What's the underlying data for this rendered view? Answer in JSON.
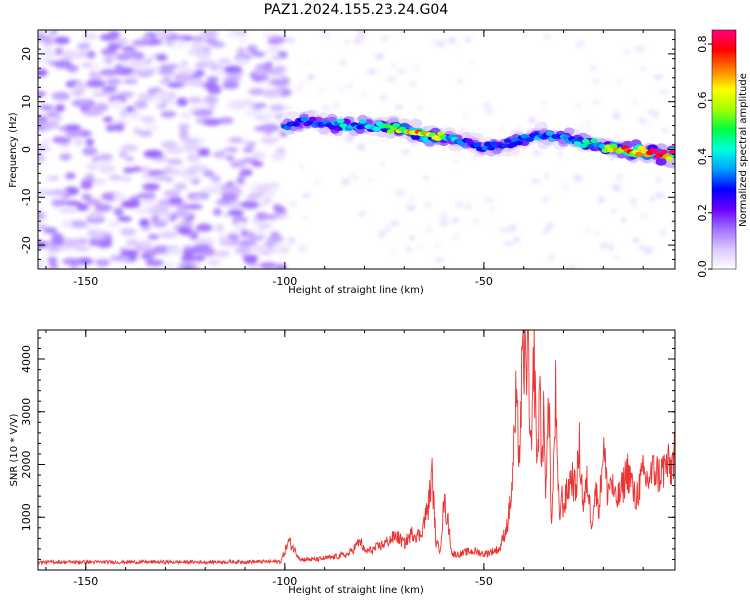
{
  "title": "PAZ1.2024.155.23.24.G04",
  "chart_data": [
    {
      "type": "heatmap",
      "name": "spectrogram",
      "xlabel": "Height of straight line (km)",
      "ylabel": "Frequency (Hz)",
      "xlim": [
        -162,
        -2
      ],
      "ylim": [
        -25,
        25
      ],
      "xticks": [
        -150,
        -100,
        -50
      ],
      "yticks": [
        -20,
        -10,
        0,
        10,
        20
      ],
      "colorbar": {
        "label": "Normalized spectral amplitude",
        "range": [
          0.0,
          0.85
        ],
        "ticks": [
          0.0,
          0.2,
          0.4,
          0.6,
          0.8
        ],
        "colors": [
          "#ffffff",
          "#dcc8ff",
          "#a070ff",
          "#6a00ff",
          "#0000ff",
          "#00a0ff",
          "#00ffe0",
          "#00ff40",
          "#a0ff00",
          "#ffff00",
          "#ff8000",
          "#ff0000",
          "#ff0080"
        ]
      },
      "signal_track": {
        "x": [
          -100,
          -95,
          -90,
          -85,
          -80,
          -75,
          -70,
          -65,
          -60,
          -55,
          -50,
          -45,
          -40,
          -35,
          -30,
          -25,
          -20,
          -15,
          -10,
          -5,
          -2
        ],
        "freq": [
          5,
          6,
          5.5,
          5,
          5,
          5,
          4,
          3,
          2.5,
          1.5,
          0.5,
          1,
          2.5,
          3,
          2.5,
          1.5,
          0.5,
          0,
          -0.5,
          -1,
          -1.2
        ],
        "peak_amplitude": [
          0.3,
          0.3,
          0.3,
          0.4,
          0.4,
          0.5,
          0.6,
          0.7,
          0.5,
          0.3,
          0.3,
          0.3,
          0.3,
          0.35,
          0.35,
          0.4,
          0.5,
          0.7,
          0.8,
          0.85,
          0.8
        ]
      },
      "noise_region_end_x": -100
    },
    {
      "type": "line",
      "name": "snr",
      "xlabel": "Height of straight line (km)",
      "ylabel": "SNR (10 * V/V)",
      "xlim": [
        -162,
        -2
      ],
      "ylim": [
        0,
        4550
      ],
      "xticks": [
        -150,
        -100,
        -50
      ],
      "yticks": [
        1000,
        2000,
        3000,
        4000
      ],
      "color": "#ee3333",
      "series": [
        {
          "x": [
            -162,
            -140,
            -120,
            -101,
            -99,
            -96,
            -92,
            -88,
            -84,
            -81,
            -80,
            -78,
            -75,
            -72,
            -70,
            -68,
            -66,
            -64,
            -63,
            -62,
            -61,
            -60,
            -59,
            -58,
            -56,
            -54,
            -52,
            -50,
            -48,
            -46,
            -45,
            -44,
            -43,
            -42,
            -41,
            -40.5,
            -40,
            -39.5,
            -39,
            -38.5,
            -38,
            -37.5,
            -37,
            -36.5,
            -36,
            -35.5,
            -35,
            -34.5,
            -34,
            -33.5,
            -33,
            -32.5,
            -32,
            -31.5,
            -31,
            -30.5,
            -30,
            -29,
            -28,
            -27,
            -26,
            -25,
            -24,
            -23,
            -22,
            -21,
            -20,
            -19,
            -18,
            -17,
            -16,
            -15,
            -14,
            -13,
            -12,
            -11,
            -10,
            -9,
            -8,
            -7,
            -6,
            -5,
            -4,
            -3,
            -2
          ],
          "y": [
            150,
            150,
            150,
            160,
            550,
            200,
            200,
            240,
            300,
            550,
            350,
            380,
            500,
            650,
            500,
            700,
            650,
            1200,
            1800,
            500,
            400,
            1300,
            900,
            300,
            300,
            350,
            350,
            300,
            350,
            400,
            650,
            900,
            1500,
            3100,
            2200,
            3500,
            4100,
            3800,
            4450,
            2600,
            2100,
            4300,
            3000,
            1800,
            3800,
            2000,
            2800,
            1500,
            3000,
            2600,
            800,
            1900,
            3300,
            1700,
            1000,
            1400,
            1200,
            1500,
            1800,
            1500,
            2300,
            1200,
            1700,
            900,
            1500,
            1200,
            2400,
            1500,
            1700,
            1300,
            1400,
            1600,
            1900,
            1700,
            1300,
            1600,
            1800,
            1700,
            1800,
            1900,
            1800,
            1900,
            2000,
            1900,
            2300
          ]
        }
      ]
    }
  ]
}
